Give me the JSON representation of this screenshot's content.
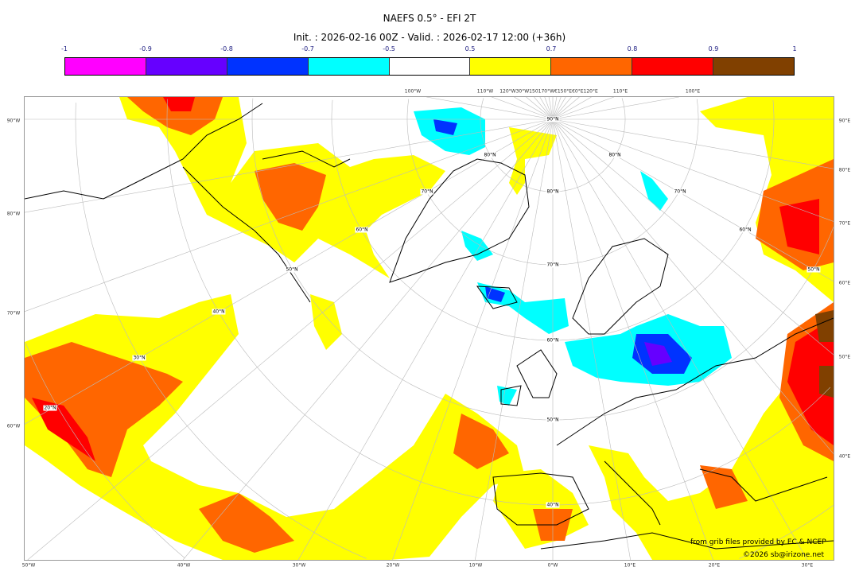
{
  "title": "NAEFS 0.5° - EFI 2T",
  "subtitle": "Init. : 2026-02-16 00Z - Valid. : 2026-02-17 12:00 (+36h)",
  "colorbar": {
    "ticks": [
      "-1",
      "-0.9",
      "-0.8",
      "-0.7",
      "-0.5",
      "0.5",
      "0.7",
      "0.8",
      "0.9",
      "1"
    ],
    "colors": [
      "#ff00ff",
      "#6600ff",
      "#0033ff",
      "#00ffff",
      "#ffffff",
      "#ffff00",
      "#ff6600",
      "#ff0000",
      "#804000"
    ]
  },
  "map": {
    "left_labels": [
      "90°W",
      "80°W",
      "70°W",
      "60°W"
    ],
    "right_labels": [
      "90°E",
      "80°E",
      "70°E",
      "60°E",
      "50°E",
      "40°E"
    ],
    "top_labels": [
      "100°W",
      "110°W",
      "120°W30°W150170°W€150°E€0°E120°E",
      "110°E",
      "100°E"
    ],
    "bottom_labels": [
      "50°W",
      "40°W",
      "30°W",
      "20°W",
      "10°W",
      "0°W",
      "10°E",
      "20°E",
      "30°E"
    ],
    "inner_labels": [
      "90°N",
      "80°N",
      "70°N",
      "60°N",
      "50°N",
      "40°N",
      "80°N",
      "70°N",
      "60°N",
      "50°N",
      "40°N",
      "30°N",
      "20°N",
      "80°N",
      "70°N",
      "60°N",
      "50°N"
    ]
  },
  "credits": {
    "source": "from grib files provided by EC & NCEP",
    "copyright": "©2026 sb@irizone.net"
  }
}
